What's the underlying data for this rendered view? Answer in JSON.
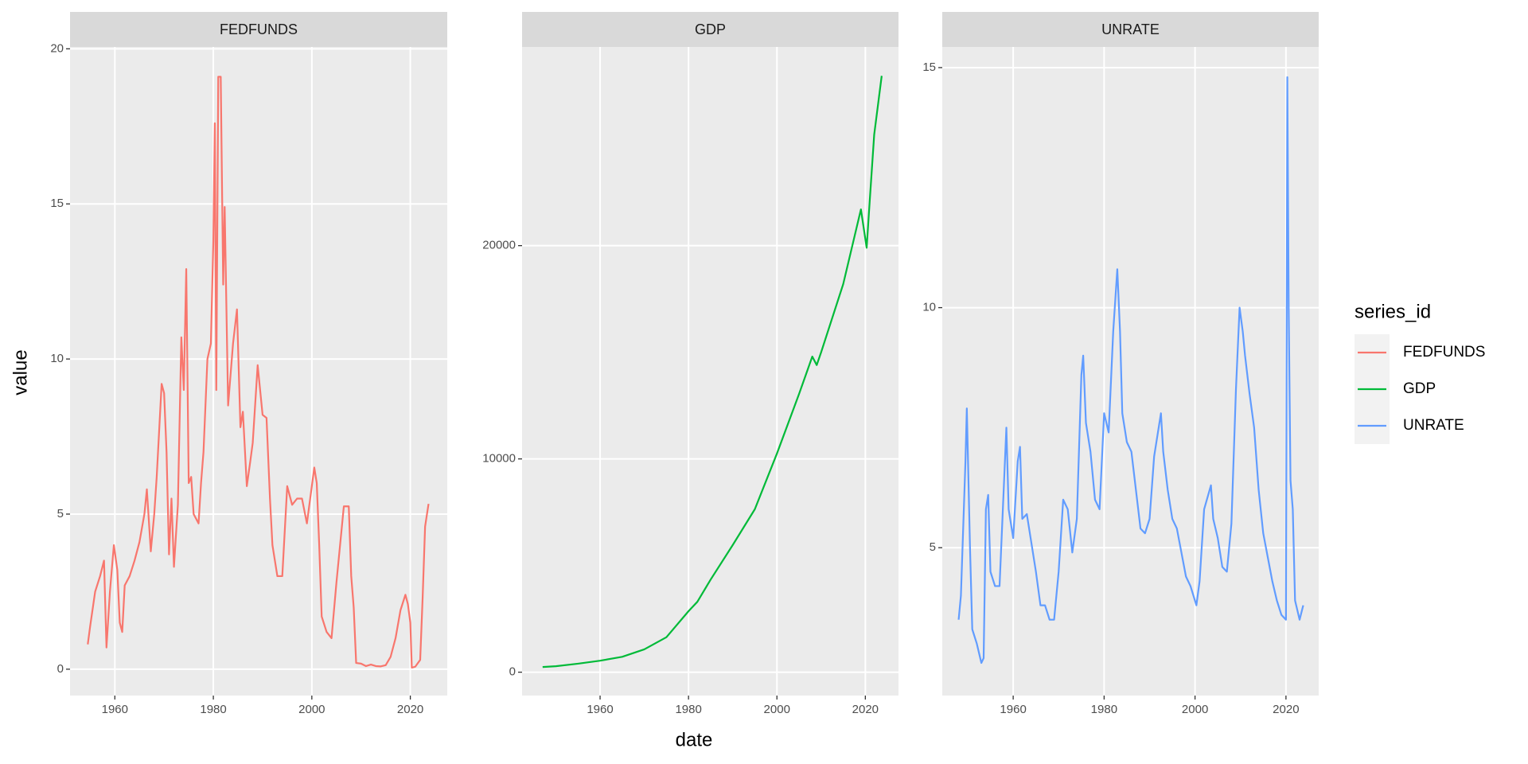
{
  "chart_data": [
    {
      "type": "line",
      "title": "FEDFUNDS",
      "x": [
        1954.5,
        1955,
        1956,
        1957,
        1957.8,
        1958.3,
        1959,
        1959.8,
        1960.5,
        1961,
        1961.5,
        1962,
        1963,
        1964,
        1965,
        1966,
        1966.5,
        1967.3,
        1968,
        1968.5,
        1969.5,
        1970,
        1970.5,
        1971,
        1971.5,
        1972,
        1972.8,
        1973.5,
        1974,
        1974.5,
        1975,
        1975.5,
        1976,
        1977,
        1977.5,
        1978,
        1978.8,
        1979.5,
        1980,
        1980.3,
        1980.6,
        1981,
        1981.5,
        1982,
        1982.3,
        1983,
        1984,
        1984.8,
        1985.5,
        1986,
        1986.8,
        1987.5,
        1988,
        1989,
        1990,
        1990.8,
        1991.5,
        1992,
        1993,
        1994,
        1995,
        1996,
        1997,
        1998,
        1999,
        2000.5,
        2001,
        2001.5,
        2002,
        2003,
        2004,
        2005,
        2006.5,
        2007.5,
        2008,
        2008.5,
        2009,
        2010,
        2011,
        2012,
        2013,
        2014,
        2015,
        2016,
        2017,
        2018,
        2019,
        2019.5,
        2020,
        2020.3,
        2021,
        2022,
        2022.5,
        2023,
        2023.7
      ],
      "series": [
        {
          "name": "FEDFUNDS",
          "color": "#F8766D",
          "values": [
            0.8,
            1.4,
            2.5,
            3.0,
            3.5,
            0.7,
            2.5,
            4.0,
            3.2,
            1.5,
            1.2,
            2.7,
            3.0,
            3.5,
            4.1,
            5.0,
            5.8,
            3.8,
            5.0,
            6.2,
            9.2,
            8.9,
            7.0,
            3.7,
            5.5,
            3.3,
            5.3,
            10.7,
            9.0,
            12.9,
            6.0,
            6.2,
            5.0,
            4.7,
            6.0,
            7.0,
            10.0,
            10.5,
            13.8,
            17.6,
            9.0,
            19.1,
            19.1,
            12.4,
            14.9,
            8.5,
            10.5,
            11.6,
            7.8,
            8.3,
            5.9,
            6.7,
            7.3,
            9.8,
            8.2,
            8.1,
            5.5,
            4.0,
            3.0,
            3.0,
            5.9,
            5.3,
            5.5,
            5.5,
            4.7,
            6.5,
            6.0,
            4.0,
            1.7,
            1.2,
            1.0,
            2.8,
            5.25,
            5.25,
            3.0,
            2.0,
            0.2,
            0.18,
            0.1,
            0.15,
            0.1,
            0.09,
            0.13,
            0.4,
            1.0,
            1.9,
            2.4,
            2.1,
            1.5,
            0.05,
            0.08,
            0.3,
            2.3,
            4.6,
            5.33
          ]
        }
      ],
      "xlim": [
        1950.9,
        2027.5
      ],
      "xticks": [
        1960,
        1980,
        2000,
        2020
      ],
      "ylim": [
        -0.85,
        20.06
      ],
      "yticks": [
        0,
        5,
        10,
        15,
        20
      ],
      "grid": true
    },
    {
      "type": "line",
      "title": "GDP",
      "x": [
        1947,
        1950,
        1955,
        1960,
        1965,
        1970,
        1975,
        1980,
        1982,
        1985,
        1990,
        1995,
        2000,
        2005,
        2008,
        2009,
        2010,
        2015,
        2019,
        2020.3,
        2020.8,
        2022,
        2023.7
      ],
      "series": [
        {
          "name": "GDP",
          "color": "#00BA38",
          "values": [
            243,
            280,
            400,
            540,
            720,
            1070,
            1640,
            2860,
            3300,
            4340,
            5960,
            7640,
            10250,
            13040,
            14800,
            14400,
            15000,
            18200,
            21700,
            19900,
            21500,
            25200,
            27960
          ]
        }
      ],
      "xlim": [
        1942.35,
        2027.5
      ],
      "xticks": [
        1960,
        1980,
        2000,
        2020
      ],
      "ylim": [
        -1096,
        29315
      ],
      "yticks": [
        0,
        10000,
        20000
      ],
      "grid": true
    },
    {
      "type": "line",
      "title": "UNRATE",
      "x": [
        1948,
        1948.5,
        1949.5,
        1949.8,
        1950.5,
        1951,
        1952,
        1953,
        1953.5,
        1954,
        1954.5,
        1955,
        1956,
        1957,
        1958.5,
        1959,
        1960,
        1961,
        1961.5,
        1962,
        1963,
        1964,
        1965,
        1966,
        1967,
        1968,
        1969,
        1970,
        1971,
        1972,
        1973,
        1974,
        1975,
        1975.4,
        1976,
        1977,
        1978,
        1979,
        1980,
        1981,
        1982,
        1982.9,
        1983.5,
        1984,
        1985,
        1986,
        1987,
        1988,
        1989,
        1990,
        1991,
        1992.5,
        1993,
        1994,
        1995,
        1996,
        1997,
        1998,
        1999,
        2000.3,
        2001,
        2002,
        2003.5,
        2004,
        2005,
        2006,
        2007,
        2008,
        2009,
        2009.8,
        2010.5,
        2011,
        2012,
        2013,
        2014,
        2015,
        2016,
        2017,
        2018,
        2019,
        2020,
        2020.3,
        2020.6,
        2021,
        2021.5,
        2022,
        2023,
        2023.8
      ],
      "series": [
        {
          "name": "UNRATE",
          "color": "#619CFF",
          "values": [
            3.5,
            4.0,
            6.8,
            7.9,
            5.0,
            3.3,
            3.0,
            2.6,
            2.7,
            5.8,
            6.1,
            4.5,
            4.2,
            4.2,
            7.5,
            5.8,
            5.2,
            6.8,
            7.1,
            5.6,
            5.7,
            5.1,
            4.5,
            3.8,
            3.8,
            3.5,
            3.5,
            4.5,
            6.0,
            5.8,
            4.9,
            5.6,
            8.6,
            9.0,
            7.6,
            7.0,
            6.0,
            5.8,
            7.8,
            7.4,
            9.5,
            10.8,
            9.5,
            7.8,
            7.2,
            7.0,
            6.2,
            5.4,
            5.3,
            5.6,
            6.9,
            7.8,
            7.0,
            6.2,
            5.6,
            5.4,
            4.9,
            4.4,
            4.2,
            3.8,
            4.3,
            5.8,
            6.3,
            5.6,
            5.2,
            4.6,
            4.5,
            5.5,
            8.3,
            10.0,
            9.5,
            9.0,
            8.2,
            7.5,
            6.2,
            5.3,
            4.8,
            4.3,
            3.9,
            3.6,
            3.5,
            14.8,
            10.0,
            6.4,
            5.8,
            3.9,
            3.5,
            3.8
          ]
        }
      ],
      "xlim": [
        1944.4,
        2027.2
      ],
      "xticks": [
        1960,
        1980,
        2000,
        2020
      ],
      "ylim": [
        1.92,
        15.43
      ],
      "yticks": [
        5,
        10,
        15
      ],
      "grid": true
    }
  ],
  "xlabel": "date",
  "ylabel": "value",
  "legend": {
    "title": "series_id",
    "position": "right"
  }
}
